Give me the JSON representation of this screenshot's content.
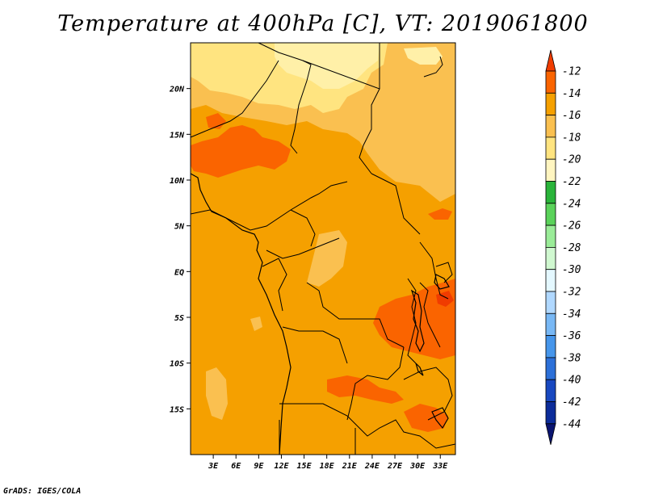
{
  "title": "Temperature at 400hPa [C], VT: 2019061800",
  "footer": "GrADS: IGES/COLA",
  "map": {
    "projection": "lat-lon",
    "lon_range": [
      0,
      35
    ],
    "lat_range": [
      -20,
      25
    ],
    "x_ticks": [
      {
        "lon": 3,
        "label": "3E"
      },
      {
        "lon": 6,
        "label": "6E"
      },
      {
        "lon": 9,
        "label": "9E"
      },
      {
        "lon": 12,
        "label": "12E"
      },
      {
        "lon": 15,
        "label": "15E"
      },
      {
        "lon": 18,
        "label": "18E"
      },
      {
        "lon": 21,
        "label": "21E"
      },
      {
        "lon": 24,
        "label": "24E"
      },
      {
        "lon": 27,
        "label": "27E"
      },
      {
        "lon": 30,
        "label": "30E"
      },
      {
        "lon": 33,
        "label": "33E"
      }
    ],
    "y_ticks": [
      {
        "lat": 20,
        "label": "20N"
      },
      {
        "lat": 15,
        "label": "15N"
      },
      {
        "lat": 10,
        "label": "10N"
      },
      {
        "lat": 5,
        "label": "5N"
      },
      {
        "lat": 0,
        "label": "EQ"
      },
      {
        "lat": -5,
        "label": "5S"
      },
      {
        "lat": -10,
        "label": "10S"
      },
      {
        "lat": -15,
        "label": "15S"
      }
    ],
    "colors": {
      "base": "#f5a000",
      "warm": "#fa6400",
      "light_orange": "#fac050",
      "pale_yellow": "#ffe480",
      "lightest": "#fff0a8",
      "border": "#000000"
    }
  },
  "colorbar": {
    "levels": [
      "-12",
      "-14",
      "-16",
      "-18",
      "-20",
      "-22",
      "-24",
      "-26",
      "-28",
      "-30",
      "-32",
      "-34",
      "-36",
      "-38",
      "-40",
      "-42",
      "-44"
    ],
    "colors": [
      "#f03c00",
      "#fa6400",
      "#f5a000",
      "#fac050",
      "#ffe480",
      "#fff5c0",
      "#2ab43a",
      "#5ad25a",
      "#9aec98",
      "#d0f8d0",
      "#e4f8ff",
      "#b0d8ff",
      "#78b8f5",
      "#4696eb",
      "#2c70d8",
      "#1848c0",
      "#0c2c9a",
      "#0a1470"
    ]
  }
}
